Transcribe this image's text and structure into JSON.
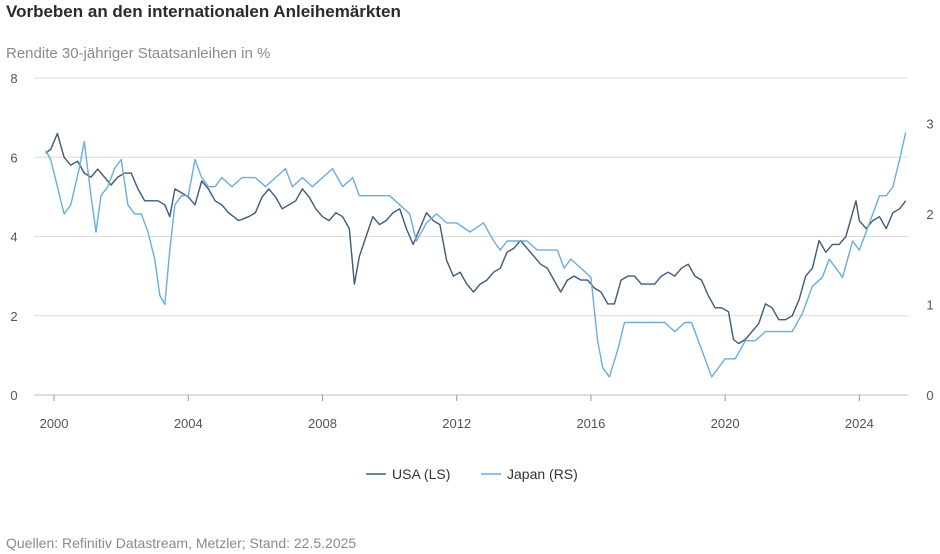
{
  "title": "Vorbeben an den internationalen Anleihemärkten",
  "source": "Quellen: Refinitiv Datastream, Metzler; Stand: 22.5.2025",
  "colors": {
    "usa": "#3d5a78",
    "japan": "#6aaee0",
    "grid": "#dcdcdc"
  },
  "chart_data": {
    "type": "line",
    "title": "Vorbeben an den internationalen Anleihemärkten",
    "ylabel": "Rendite 30-jähriger Staatsanleihen in %",
    "xlim": [
      1999.7,
      2025.45
    ],
    "ylim_left": [
      0,
      8
    ],
    "ylim_right": [
      0,
      3.5
    ],
    "x_ticks": [
      "2000",
      "2004",
      "2008",
      "2012",
      "2016",
      "2020",
      "2024"
    ],
    "y_ticks_left": [
      "0",
      "2",
      "4",
      "6",
      "8"
    ],
    "y_ticks_right": [
      "0",
      "1",
      "2",
      "3"
    ],
    "legend": [
      "USA (LS)",
      "Japan (RS)"
    ],
    "series": [
      {
        "name": "USA (LS)",
        "axis": "left",
        "x": [
          1999.75,
          1999.9,
          2000.1,
          2000.3,
          2000.5,
          2000.7,
          2000.9,
          2001.1,
          2001.3,
          2001.5,
          2001.7,
          2001.9,
          2002.1,
          2002.3,
          2002.5,
          2002.7,
          2002.9,
          2003.1,
          2003.3,
          2003.45,
          2003.6,
          2003.8,
          2004.0,
          2004.2,
          2004.4,
          2004.6,
          2004.8,
          2005.0,
          2005.2,
          2005.5,
          2005.8,
          2006.0,
          2006.2,
          2006.4,
          2006.6,
          2006.8,
          2007.0,
          2007.2,
          2007.4,
          2007.6,
          2007.8,
          2008.0,
          2008.2,
          2008.4,
          2008.6,
          2008.8,
          2008.95,
          2009.1,
          2009.3,
          2009.5,
          2009.7,
          2009.9,
          2010.1,
          2010.3,
          2010.5,
          2010.7,
          2010.9,
          2011.1,
          2011.3,
          2011.5,
          2011.7,
          2011.9,
          2012.1,
          2012.3,
          2012.5,
          2012.7,
          2012.9,
          2013.1,
          2013.3,
          2013.5,
          2013.7,
          2013.9,
          2014.1,
          2014.3,
          2014.5,
          2014.7,
          2014.9,
          2015.1,
          2015.3,
          2015.5,
          2015.7,
          2015.9,
          2016.1,
          2016.3,
          2016.5,
          2016.7,
          2016.9,
          2017.1,
          2017.3,
          2017.5,
          2017.7,
          2017.9,
          2018.1,
          2018.3,
          2018.5,
          2018.7,
          2018.9,
          2019.1,
          2019.3,
          2019.5,
          2019.7,
          2019.9,
          2020.1,
          2020.25,
          2020.4,
          2020.6,
          2020.8,
          2021.0,
          2021.2,
          2021.4,
          2021.6,
          2021.8,
          2022.0,
          2022.2,
          2022.4,
          2022.6,
          2022.8,
          2023.0,
          2023.2,
          2023.4,
          2023.6,
          2023.8,
          2023.9,
          2024.0,
          2024.2,
          2024.4,
          2024.6,
          2024.8,
          2025.0,
          2025.2,
          2025.38
        ],
        "values": [
          6.1,
          6.2,
          6.6,
          6.0,
          5.8,
          5.9,
          5.6,
          5.5,
          5.7,
          5.5,
          5.3,
          5.5,
          5.6,
          5.6,
          5.2,
          4.9,
          4.9,
          4.9,
          4.8,
          4.5,
          5.2,
          5.1,
          5.0,
          4.8,
          5.4,
          5.2,
          4.9,
          4.8,
          4.6,
          4.4,
          4.5,
          4.6,
          5.0,
          5.2,
          5.0,
          4.7,
          4.8,
          4.9,
          5.2,
          5.0,
          4.7,
          4.5,
          4.4,
          4.6,
          4.5,
          4.2,
          2.8,
          3.5,
          4.0,
          4.5,
          4.3,
          4.4,
          4.6,
          4.7,
          4.2,
          3.8,
          4.2,
          4.6,
          4.4,
          4.3,
          3.4,
          3.0,
          3.1,
          2.8,
          2.6,
          2.8,
          2.9,
          3.1,
          3.2,
          3.6,
          3.7,
          3.9,
          3.7,
          3.5,
          3.3,
          3.2,
          2.9,
          2.6,
          2.9,
          3.0,
          2.9,
          2.9,
          2.7,
          2.6,
          2.3,
          2.3,
          2.9,
          3.0,
          3.0,
          2.8,
          2.8,
          2.8,
          3.0,
          3.1,
          3.0,
          3.2,
          3.3,
          3.0,
          2.9,
          2.5,
          2.2,
          2.2,
          2.1,
          1.4,
          1.3,
          1.4,
          1.6,
          1.8,
          2.3,
          2.2,
          1.9,
          1.9,
          2.0,
          2.4,
          3.0,
          3.2,
          3.9,
          3.6,
          3.8,
          3.8,
          4.0,
          4.6,
          4.9,
          4.4,
          4.2,
          4.4,
          4.5,
          4.2,
          4.6,
          4.7,
          4.9
        ],
        "color": "#3d5a78"
      },
      {
        "name": "Japan (RS)",
        "axis": "right",
        "x": [
          1999.75,
          1999.9,
          2000.1,
          2000.3,
          2000.5,
          2000.75,
          2000.9,
          2001.1,
          2001.25,
          2001.4,
          2001.6,
          2001.8,
          2002.0,
          2002.2,
          2002.4,
          2002.6,
          2002.8,
          2003.0,
          2003.15,
          2003.3,
          2003.45,
          2003.6,
          2003.8,
          2004.0,
          2004.2,
          2004.4,
          2004.6,
          2004.8,
          2005.0,
          2005.3,
          2005.6,
          2006.0,
          2006.3,
          2006.6,
          2006.9,
          2007.1,
          2007.4,
          2007.7,
          2008.0,
          2008.3,
          2008.6,
          2008.9,
          2009.1,
          2009.4,
          2009.7,
          2010.0,
          2010.3,
          2010.6,
          2010.8,
          2011.1,
          2011.4,
          2011.7,
          2012.0,
          2012.4,
          2012.8,
          2013.1,
          2013.3,
          2013.5,
          2013.8,
          2014.1,
          2014.4,
          2014.7,
          2015.0,
          2015.2,
          2015.4,
          2015.7,
          2016.0,
          2016.2,
          2016.35,
          2016.55,
          2016.8,
          2017.0,
          2017.3,
          2017.6,
          2017.9,
          2018.2,
          2018.5,
          2018.8,
          2019.0,
          2019.2,
          2019.4,
          2019.6,
          2019.8,
          2020.0,
          2020.3,
          2020.6,
          2020.9,
          2021.2,
          2021.5,
          2021.8,
          2022.0,
          2022.3,
          2022.6,
          2022.9,
          2023.1,
          2023.3,
          2023.5,
          2023.8,
          2024.0,
          2024.2,
          2024.4,
          2024.6,
          2024.8,
          2025.0,
          2025.2,
          2025.38
        ],
        "values": [
          2.7,
          2.6,
          2.3,
          2.0,
          2.1,
          2.5,
          2.8,
          2.2,
          1.8,
          2.2,
          2.3,
          2.5,
          2.6,
          2.1,
          2.0,
          2.0,
          1.8,
          1.5,
          1.1,
          1.0,
          1.6,
          2.1,
          2.2,
          2.2,
          2.6,
          2.4,
          2.3,
          2.3,
          2.4,
          2.3,
          2.4,
          2.4,
          2.3,
          2.4,
          2.5,
          2.3,
          2.4,
          2.3,
          2.4,
          2.5,
          2.3,
          2.4,
          2.2,
          2.2,
          2.2,
          2.2,
          2.1,
          2.0,
          1.7,
          1.9,
          2.0,
          1.9,
          1.9,
          1.8,
          1.9,
          1.7,
          1.6,
          1.7,
          1.7,
          1.7,
          1.6,
          1.6,
          1.6,
          1.4,
          1.5,
          1.4,
          1.3,
          0.6,
          0.3,
          0.2,
          0.5,
          0.8,
          0.8,
          0.8,
          0.8,
          0.8,
          0.7,
          0.8,
          0.8,
          0.6,
          0.4,
          0.2,
          0.3,
          0.4,
          0.4,
          0.6,
          0.6,
          0.7,
          0.7,
          0.7,
          0.7,
          0.9,
          1.2,
          1.3,
          1.5,
          1.4,
          1.3,
          1.7,
          1.6,
          1.8,
          2.0,
          2.2,
          2.2,
          2.3,
          2.6,
          2.9
        ],
        "color": "#6aaee0"
      }
    ]
  }
}
